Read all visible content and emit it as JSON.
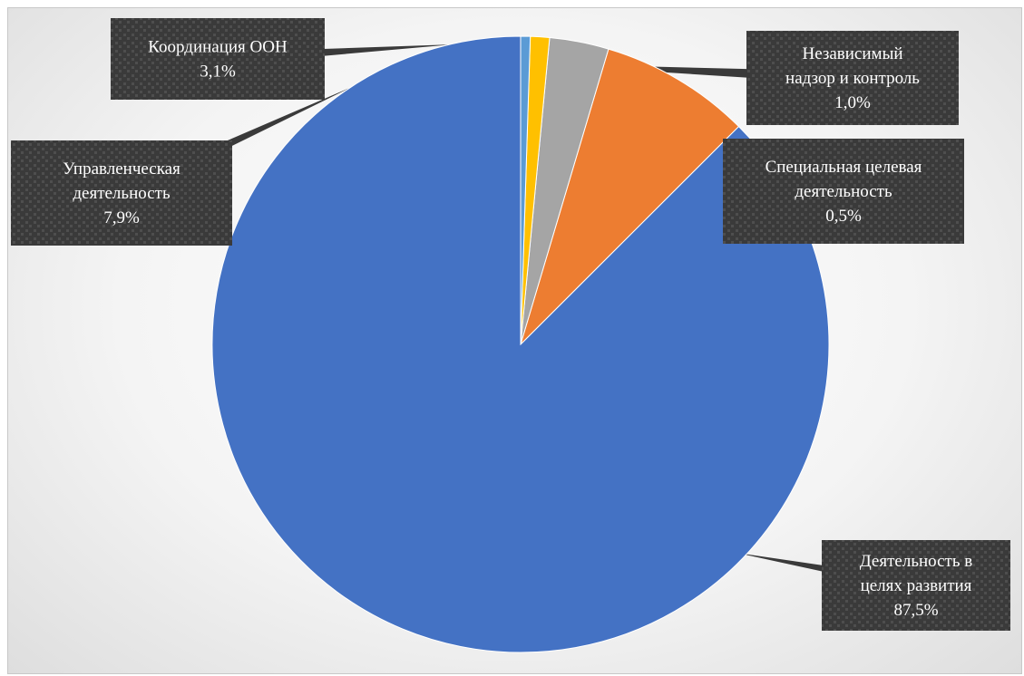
{
  "chart_data": {
    "type": "pie",
    "categories": [
      "Деятельность в целях развития",
      "Управленческая деятельность",
      "Координация ООН",
      "Независимый надзор и контроль",
      "Специальная целевая деятельность"
    ],
    "values": [
      87.5,
      7.9,
      3.1,
      1.0,
      0.5
    ],
    "colors": [
      "#4472C4",
      "#ED7D31",
      "#A5A5A5",
      "#FFC000",
      "#5B9BD5"
    ],
    "data_labels": [
      {
        "lines": [
          "Деятельность в",
          "целях развития",
          "87,5%"
        ]
      },
      {
        "lines": [
          "Управленческая",
          "деятельность",
          "7,9%"
        ]
      },
      {
        "lines": [
          "Координация ООН",
          "3,1%"
        ]
      },
      {
        "lines": [
          "Независимый",
          "надзор и контроль",
          "1,0%"
        ]
      },
      {
        "lines": [
          "Специальная целевая",
          "деятельность",
          "0,5%"
        ]
      }
    ],
    "start_angle": "top",
    "direction": "counterclockwise",
    "legend": "none",
    "label_style": "dark patterned callouts with leader lines"
  }
}
